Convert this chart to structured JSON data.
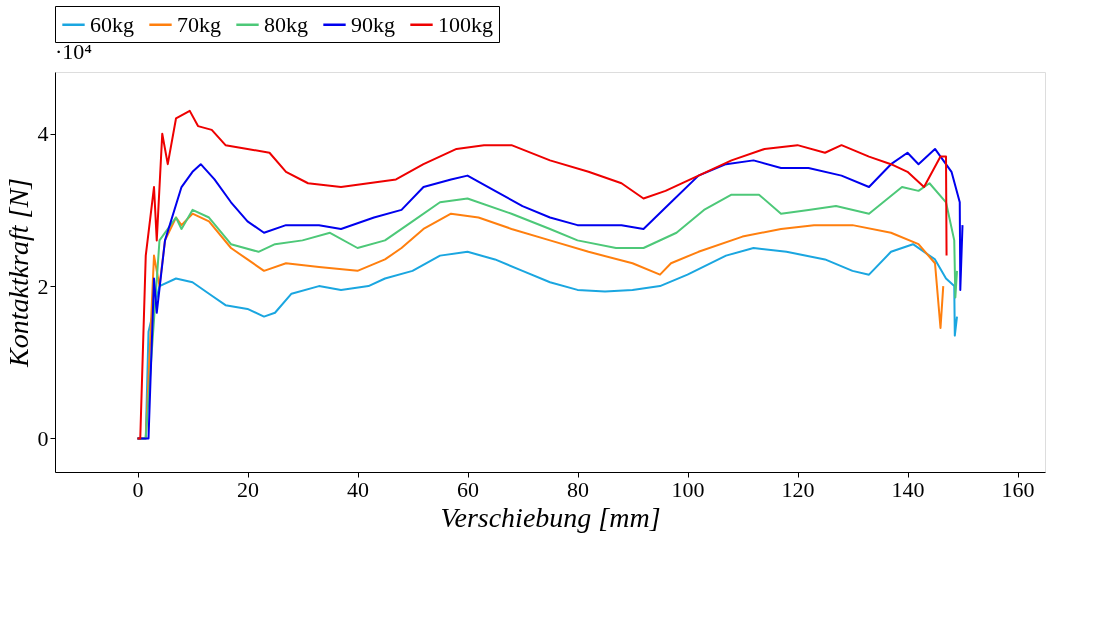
{
  "chart_data": {
    "type": "line",
    "xlabel": "Verschiebung [mm]",
    "ylabel": "Kontaktkraft [N]",
    "annotations": [
      "·10⁴"
    ],
    "xlim": [
      -15,
      165
    ],
    "xticks": [
      0,
      20,
      40,
      60,
      80,
      100,
      120,
      140,
      160
    ],
    "ylim": [
      -0.44,
      4.81
    ],
    "yticks": [
      0,
      2,
      4
    ],
    "grid": false,
    "legend": "top",
    "marker": "none",
    "line_style": "solid",
    "series": [
      {
        "name": "60kg",
        "color": "#1aa6e0",
        "x": [
          0,
          1.5,
          2,
          4,
          7,
          10,
          13,
          16,
          20,
          23,
          25,
          28,
          33,
          37,
          42,
          45,
          50,
          55,
          60,
          65,
          70,
          75,
          80,
          85,
          90,
          95,
          100,
          107,
          112,
          118,
          125,
          130,
          133,
          137,
          141,
          145,
          147,
          148.5,
          148.6,
          149
        ],
        "values": [
          0,
          0,
          1.4,
          2.0,
          2.1,
          2.05,
          1.9,
          1.75,
          1.7,
          1.6,
          1.65,
          1.9,
          2.0,
          1.95,
          2.0,
          2.1,
          2.2,
          2.4,
          2.45,
          2.35,
          2.2,
          2.05,
          1.95,
          1.93,
          1.95,
          2.0,
          2.15,
          2.4,
          2.5,
          2.45,
          2.35,
          2.2,
          2.15,
          2.45,
          2.55,
          2.35,
          2.1,
          2.0,
          1.35,
          1.6
        ]
      },
      {
        "name": "70kg",
        "color": "#ff7f0e",
        "x": [
          0,
          1.5,
          3,
          4,
          5,
          7,
          8,
          10,
          13,
          17,
          20,
          23,
          27,
          33,
          40,
          45,
          48,
          52,
          57,
          62,
          68,
          75,
          82,
          90,
          95,
          97,
          102,
          110,
          117,
          123,
          130,
          137,
          142,
          145,
          146,
          146.5
        ],
        "values": [
          0,
          0,
          2.4,
          2.0,
          2.6,
          2.9,
          2.8,
          2.95,
          2.85,
          2.5,
          2.35,
          2.2,
          2.3,
          2.25,
          2.2,
          2.35,
          2.5,
          2.75,
          2.95,
          2.9,
          2.75,
          2.6,
          2.45,
          2.3,
          2.15,
          2.3,
          2.45,
          2.65,
          2.75,
          2.8,
          2.8,
          2.7,
          2.55,
          2.3,
          1.45,
          2.0
        ]
      },
      {
        "name": "80kg",
        "color": "#4dc878",
        "x": [
          0,
          1.5,
          4,
          7,
          8,
          10,
          13,
          17,
          22,
          25,
          30,
          35,
          40,
          45,
          50,
          55,
          60,
          68,
          75,
          80,
          87,
          92,
          98,
          103,
          108,
          113,
          117,
          122,
          127,
          133,
          139,
          142,
          144,
          147,
          148.5,
          148.7,
          149
        ],
        "values": [
          0,
          0,
          2.6,
          2.9,
          2.75,
          3.0,
          2.9,
          2.55,
          2.45,
          2.55,
          2.6,
          2.7,
          2.5,
          2.6,
          2.85,
          3.1,
          3.15,
          2.95,
          2.75,
          2.6,
          2.5,
          2.5,
          2.7,
          3.0,
          3.2,
          3.2,
          2.95,
          3.0,
          3.05,
          2.95,
          3.3,
          3.25,
          3.35,
          3.1,
          2.6,
          1.85,
          2.2
        ]
      },
      {
        "name": "90kg",
        "color": "#0000ee",
        "x": [
          0,
          2,
          3,
          3.5,
          5,
          8,
          10,
          11.5,
          14,
          17,
          20,
          23,
          27,
          33,
          37,
          43,
          48,
          52,
          57,
          60,
          65,
          70,
          75,
          80,
          88,
          92,
          97,
          102,
          107,
          112,
          117,
          122,
          128,
          133,
          137,
          140,
          142,
          145,
          148,
          149.5,
          149.6,
          150
        ],
        "values": [
          0,
          0,
          2.1,
          1.65,
          2.6,
          3.3,
          3.5,
          3.6,
          3.4,
          3.1,
          2.85,
          2.7,
          2.8,
          2.8,
          2.75,
          2.9,
          3.0,
          3.3,
          3.4,
          3.45,
          3.25,
          3.05,
          2.9,
          2.8,
          2.8,
          2.75,
          3.1,
          3.45,
          3.6,
          3.65,
          3.55,
          3.55,
          3.45,
          3.3,
          3.6,
          3.75,
          3.6,
          3.8,
          3.5,
          3.1,
          1.95,
          2.8
        ]
      },
      {
        "name": "100kg",
        "color": "#ee0000",
        "x": [
          0,
          0.5,
          1.5,
          3,
          3.5,
          4.5,
          5.5,
          7,
          9.5,
          11,
          13.5,
          16,
          20,
          24,
          27,
          31,
          37,
          42,
          47,
          52,
          58,
          63,
          68,
          75,
          82,
          88,
          92,
          96,
          102,
          108,
          114,
          120,
          125,
          128,
          133,
          137,
          140,
          143,
          146,
          147,
          147.1
        ],
        "values": [
          0,
          0,
          2.4,
          3.3,
          2.6,
          4.0,
          3.6,
          4.2,
          4.3,
          4.1,
          4.05,
          3.85,
          3.8,
          3.75,
          3.5,
          3.35,
          3.3,
          3.35,
          3.4,
          3.6,
          3.8,
          3.85,
          3.85,
          3.65,
          3.5,
          3.35,
          3.15,
          3.25,
          3.45,
          3.65,
          3.8,
          3.85,
          3.75,
          3.85,
          3.7,
          3.6,
          3.5,
          3.3,
          3.7,
          3.7,
          2.4
        ]
      }
    ]
  }
}
